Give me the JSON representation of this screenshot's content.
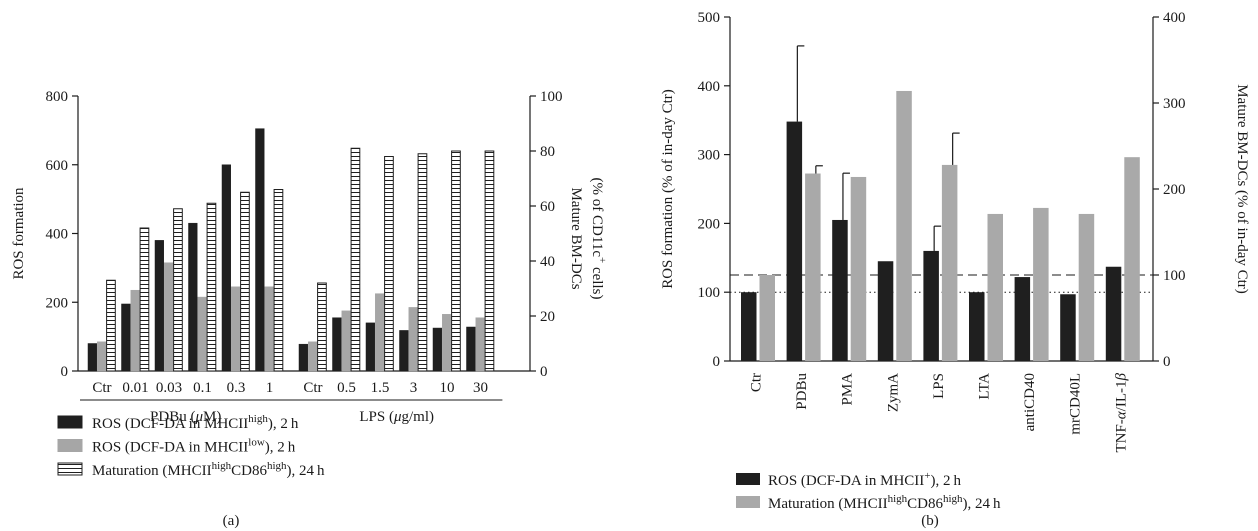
{
  "colors": {
    "ros_high": "#1f1f1f",
    "ros_low": "#a6a6a6",
    "maturation_hatch": "#1f1f1f",
    "ros_b": "#1f1f1f",
    "maturation_b": "#a9a9a9"
  },
  "chart_data": [
    {
      "panel": "(a)",
      "type": "bar",
      "categories": [
        "Ctr",
        "0.01",
        "0.03",
        "0.1",
        "0.3",
        "1",
        "Ctr",
        "0.5",
        "1.5",
        "3",
        "10",
        "30"
      ],
      "groups": [
        {
          "label": "PDBu (μM)",
          "first": 0,
          "last": 5
        },
        {
          "label": "LPS (μg/ml)",
          "first": 6,
          "last": 11
        }
      ],
      "series": [
        {
          "name": "ROS (DCF-DA in MHCII^high), 2 h",
          "legend": {
            "pre": "ROS (DCF-DA in MHCII",
            "sup": "high",
            "post": "), 2 h"
          },
          "axis": "left",
          "fill": "solid-dark",
          "values": [
            80,
            195,
            380,
            430,
            600,
            705,
            78,
            155,
            140,
            118,
            125,
            128
          ]
        },
        {
          "name": "ROS (DCF-DA in MHCII^low), 2 h",
          "legend": {
            "pre": "ROS (DCF-DA in MHCII",
            "sup": "low",
            "post": "), 2 h"
          },
          "axis": "left",
          "fill": "solid-gray",
          "values": [
            85,
            235,
            315,
            215,
            245,
            245,
            85,
            175,
            225,
            185,
            165,
            155
          ]
        },
        {
          "name": "Maturation (MHCII^high CD86^high), 24 h",
          "legend": {
            "pre": "Maturation (MHCII",
            "sup": "high",
            "mid": "CD86",
            "sup2": "high",
            "post": "), 24 h"
          },
          "axis": "right",
          "fill": "hatched",
          "values": [
            33,
            52,
            59,
            61,
            65,
            66,
            32,
            81,
            78,
            79,
            80,
            80
          ]
        }
      ],
      "left_axis": {
        "label": "ROS formation",
        "range": [
          0,
          800
        ],
        "ticks": [
          0,
          200,
          400,
          600,
          800
        ]
      },
      "right_axis": {
        "label_line1": "Mature BM-DCs",
        "label_line2_pre": "(% of CD11c",
        "label_line2_sup": "+",
        "label_line2_post": " cells)",
        "range": [
          0,
          100
        ],
        "ticks": [
          0,
          20,
          40,
          60,
          80,
          100
        ]
      },
      "legend_placement": "bottom"
    },
    {
      "panel": "(b)",
      "type": "bar",
      "categories": [
        "Ctr",
        "PDBu",
        "PMA",
        "ZymA",
        "LPS",
        "LTA",
        "antiCD40",
        "mrCD40L",
        "TNF-α/IL-1β"
      ],
      "series": [
        {
          "name": "ROS (DCF-DA in MHCII^+), 2 h",
          "legend": {
            "pre": "ROS (DCF-DA in MHCII",
            "sup": "+",
            "post": "), 2 h"
          },
          "axis": "left",
          "fill": "solid-dark",
          "values": [
            100,
            348,
            205,
            145,
            160,
            100,
            122,
            97,
            137
          ],
          "error_plus": [
            0,
            110,
            68,
            0,
            36,
            0,
            0,
            0,
            0
          ]
        },
        {
          "name": "Maturation (MHCII^high CD86^high), 24 h",
          "legend": {
            "pre": "Maturation (MHCII",
            "sup": "high",
            "mid": "CD86",
            "sup2": "high",
            "post": "), 24 h"
          },
          "axis": "right",
          "fill": "solid-gray",
          "values": [
            100,
            218,
            214,
            314,
            228,
            171,
            178,
            171,
            237
          ],
          "error_plus": [
            0,
            9,
            0,
            0,
            37,
            0,
            0,
            0,
            0
          ]
        }
      ],
      "reference_lines": [
        {
          "axis": "left",
          "value": 125,
          "style": "dashed"
        },
        {
          "axis": "left",
          "value": 100,
          "style": "dotted"
        }
      ],
      "left_axis": {
        "label": "ROS formation (% of in-day Ctr)",
        "range": [
          0,
          500
        ],
        "ticks": [
          0,
          100,
          200,
          300,
          400,
          500
        ]
      },
      "right_axis": {
        "label": "Mature BM-DCs (% of in-day Ctr)",
        "range": [
          0,
          400
        ],
        "ticks": [
          0,
          100,
          200,
          300,
          400
        ]
      },
      "legend_placement": "bottom"
    }
  ]
}
